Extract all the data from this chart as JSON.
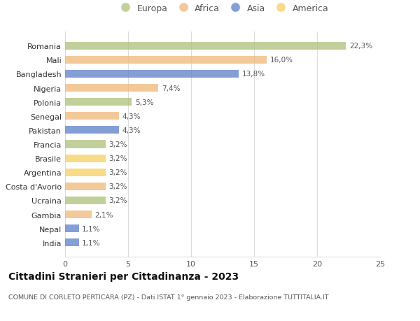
{
  "categories": [
    "Romania",
    "Mali",
    "Bangladesh",
    "Nigeria",
    "Polonia",
    "Senegal",
    "Pakistan",
    "Francia",
    "Brasile",
    "Argentina",
    "Costa d'Avorio",
    "Ucraina",
    "Gambia",
    "Nepal",
    "India"
  ],
  "values": [
    22.3,
    16.0,
    13.8,
    7.4,
    5.3,
    4.3,
    4.3,
    3.2,
    3.2,
    3.2,
    3.2,
    3.2,
    2.1,
    1.1,
    1.1
  ],
  "labels": [
    "22,3%",
    "16,0%",
    "13,8%",
    "7,4%",
    "5,3%",
    "4,3%",
    "4,3%",
    "3,2%",
    "3,2%",
    "3,2%",
    "3,2%",
    "3,2%",
    "2,1%",
    "1,1%",
    "1,1%"
  ],
  "continent": [
    "Europa",
    "Africa",
    "Asia",
    "Africa",
    "Europa",
    "Africa",
    "Asia",
    "Europa",
    "America",
    "America",
    "Africa",
    "Europa",
    "Africa",
    "Asia",
    "Asia"
  ],
  "colors": {
    "Europa": "#adc178",
    "Africa": "#f0b878",
    "Asia": "#5b7ec9",
    "America": "#f5d060"
  },
  "legend_order": [
    "Europa",
    "Africa",
    "Asia",
    "America"
  ],
  "title": "Cittadini Stranieri per Cittadinanza - 2023",
  "subtitle": "COMUNE DI CORLETO PERTICARA (PZ) - Dati ISTAT 1° gennaio 2023 - Elaborazione TUTTITALIA.IT",
  "xlim": [
    0,
    25
  ],
  "xticks": [
    0,
    5,
    10,
    15,
    20,
    25
  ],
  "background_color": "#ffffff",
  "bar_alpha": 0.75
}
